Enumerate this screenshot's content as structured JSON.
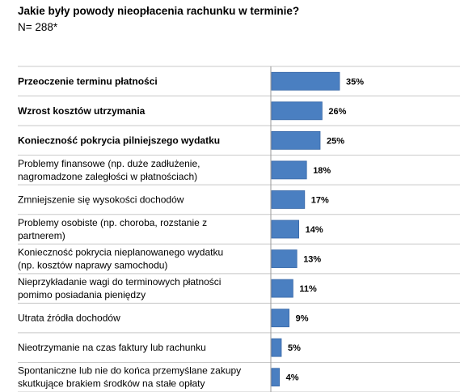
{
  "header": {
    "title": "Jakie były powody nieopłacenia rachunku w terminie?",
    "subtitle": "N= 288*"
  },
  "colors": {
    "bar": "#4a7fc1",
    "bar_edge": "#3a6aa8",
    "grid": "#c8c8c8",
    "axis": "#9a9a9a"
  },
  "chart_data": {
    "type": "bar",
    "orientation": "horizontal",
    "title": "Jakie były powody nieopłacenia rachunku w terminie?",
    "subtitle": "N= 288*",
    "categories": [
      [
        "Przeoczenie terminu płatności"
      ],
      [
        "Wzrost kosztów utrzymania"
      ],
      [
        "Konieczność pokrycia pilniejszego wydatku"
      ],
      [
        "Problemy finansowe (np. duże zadłużenie,",
        "nagromadzone zaległości w płatnościach)"
      ],
      [
        "Zmniejszenie się wysokości dochodów"
      ],
      [
        "Problemy osobiste (np. choroba, rozstanie z",
        "partnerem)"
      ],
      [
        "Konieczność pokrycia nieplanowanego wydatku",
        "(np. kosztów naprawy samochodu)"
      ],
      [
        "Nieprzykładanie wagi do terminowych płatności",
        "pomimo posiadania pieniędzy"
      ],
      [
        "Utrata źródła dochodów"
      ],
      [
        "Nieotrzymanie na czas faktury lub rachunku"
      ],
      [
        "Spontaniczne lub nie do końca przemyślane zakupy",
        "skutkujące brakiem środków na stałe opłaty"
      ]
    ],
    "bold_categories": [
      true,
      true,
      true,
      false,
      false,
      false,
      false,
      false,
      false,
      false,
      false
    ],
    "values": [
      35,
      26,
      25,
      18,
      17,
      14,
      13,
      11,
      9,
      5,
      4
    ],
    "value_labels": [
      "35%",
      "26%",
      "25%",
      "18%",
      "17%",
      "14%",
      "13%",
      "11%",
      "9%",
      "5%",
      "4%"
    ],
    "xlim": [
      0,
      100
    ],
    "grid": "horizontal row separators",
    "legend": "none"
  }
}
